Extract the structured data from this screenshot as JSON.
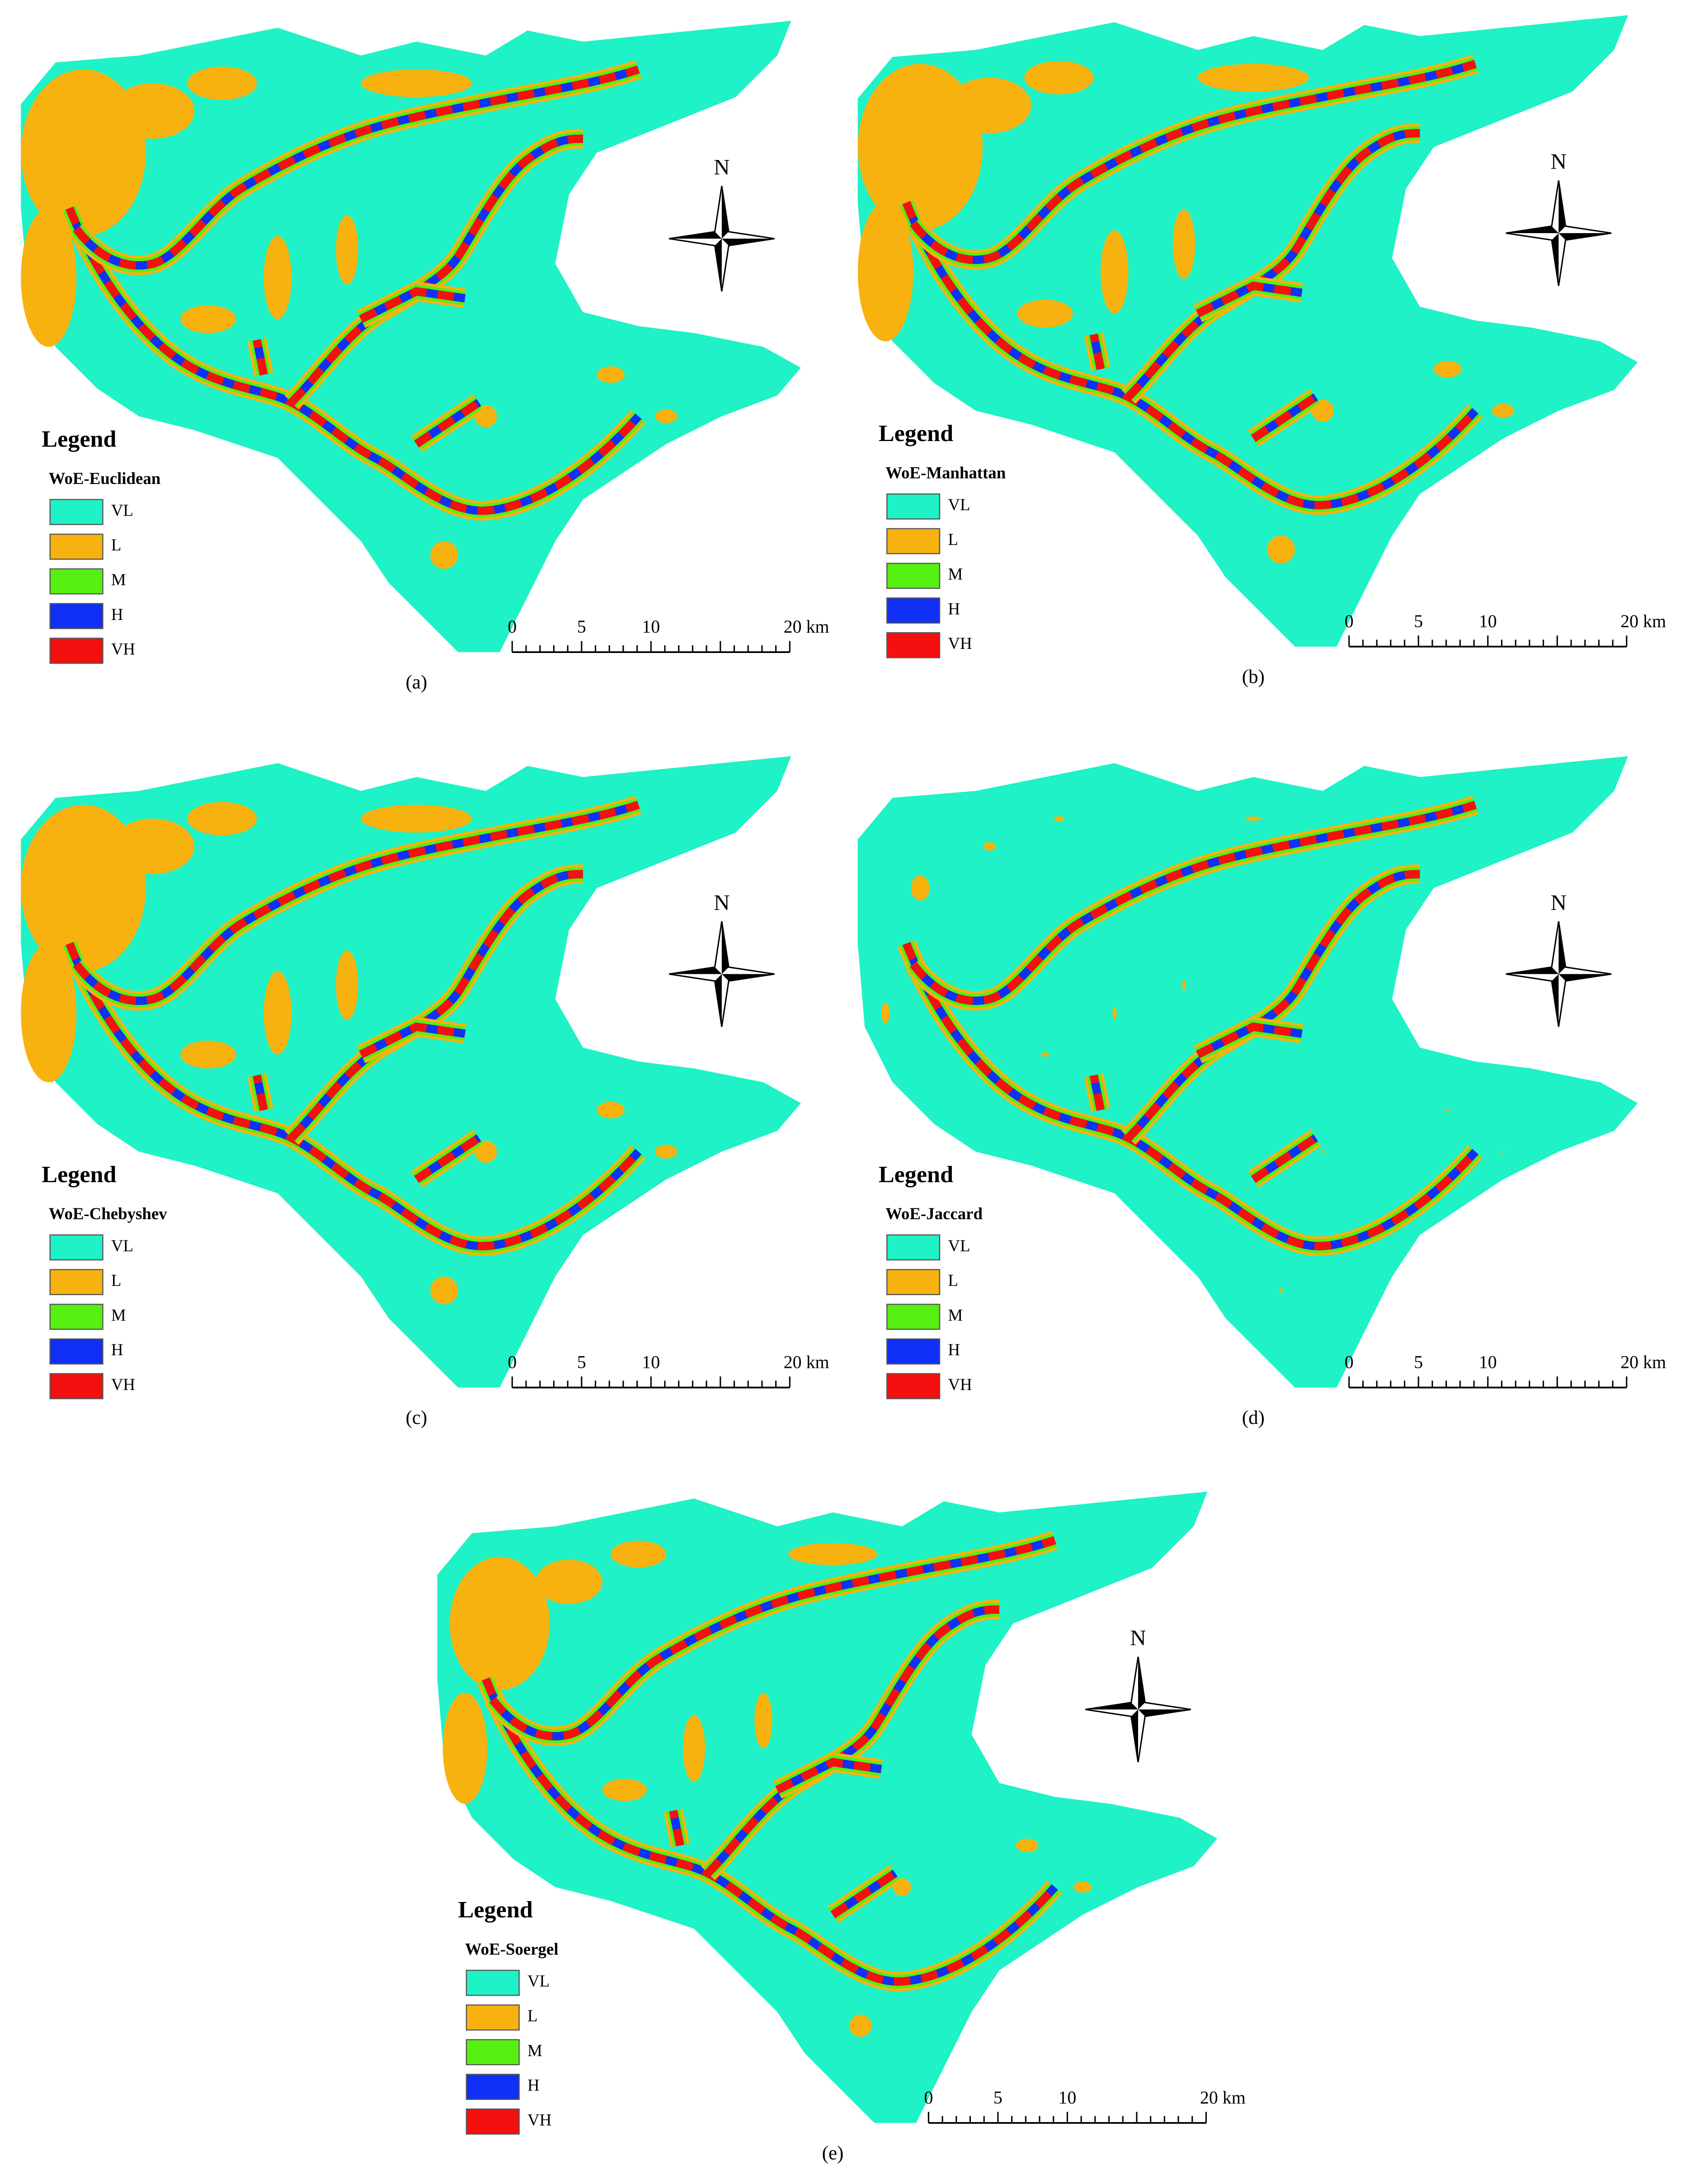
{
  "figure": {
    "legend_heading": "Legend",
    "north": "N",
    "classes": [
      {
        "label": "VL",
        "color": "#1ef2c6"
      },
      {
        "label": "L",
        "color": "#f7b20f"
      },
      {
        "label": "M",
        "color": "#55f012"
      },
      {
        "label": "H",
        "color": "#1030f5"
      },
      {
        "label": "VH",
        "color": "#f51010"
      }
    ],
    "scale_labels": [
      "0",
      "5",
      "10",
      "20 km"
    ],
    "panels": [
      {
        "title": "WoE-Euclidean",
        "caption": "(a)"
      },
      {
        "title": "WoE-Manhattan",
        "caption": "(b)"
      },
      {
        "title": "WoE-Chebyshev",
        "caption": "(c)"
      },
      {
        "title": "WoE-Jaccard",
        "caption": "(d)"
      },
      {
        "title": "WoE-Soergel",
        "caption": "(e)"
      }
    ]
  }
}
